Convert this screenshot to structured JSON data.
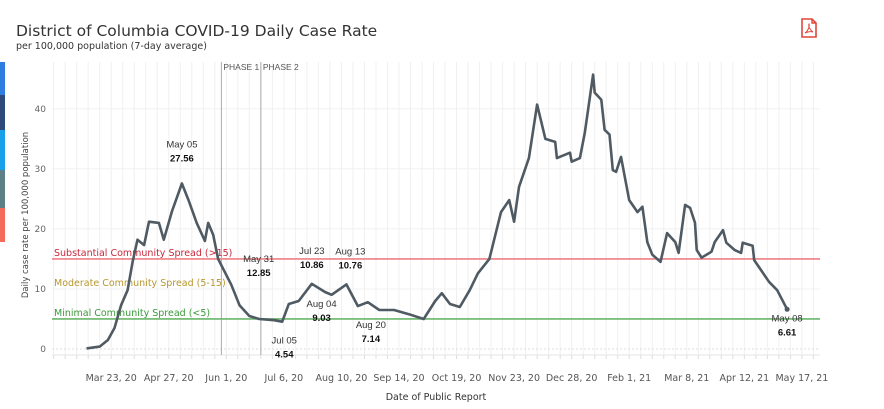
{
  "header": {
    "title": "District of Columbia COVID-19 Daily Case Rate",
    "subtitle": "per 100,000 population (7-day average)",
    "pdf_icon": "pdf-download-icon"
  },
  "side_strips": [
    "#2f7de1",
    "#2e4a7a",
    "#1aa0e8",
    "#5f7f86",
    "#f26b5b"
  ],
  "chart_data": {
    "type": "line",
    "title": "District of Columbia COVID-19 Daily Case Rate",
    "subtitle": "per 100,000 population (7-day average)",
    "xlabel": "Date of Public Report",
    "ylabel": "Daily case rate per 100,000 population",
    "xlim": [
      "2020-02-16",
      "2021-05-28"
    ],
    "ylim": [
      -1,
      47.8
    ],
    "grid": true,
    "line_color": "#4f5a63",
    "x_ticks": [
      {
        "date": "2020-03-23",
        "label": "Mar 23, 20"
      },
      {
        "date": "2020-04-27",
        "label": "Apr 27, 20"
      },
      {
        "date": "2020-06-01",
        "label": "Jun 1, 20"
      },
      {
        "date": "2020-07-06",
        "label": "Jul 6, 20"
      },
      {
        "date": "2020-08-10",
        "label": "Aug 10, 20"
      },
      {
        "date": "2020-09-14",
        "label": "Sep 14, 20"
      },
      {
        "date": "2020-10-19",
        "label": "Oct 19, 20"
      },
      {
        "date": "2020-11-23",
        "label": "Nov 23, 20"
      },
      {
        "date": "2020-12-28",
        "label": "Dec 28, 20"
      },
      {
        "date": "2021-02-01",
        "label": "Feb 1, 21"
      },
      {
        "date": "2021-03-08",
        "label": "Mar 8, 21"
      },
      {
        "date": "2021-04-12",
        "label": "Apr 12, 21"
      },
      {
        "date": "2021-05-17",
        "label": "May 17, 21"
      }
    ],
    "y_ticks": [
      {
        "value": 0,
        "label": "0"
      },
      {
        "value": 10,
        "label": "10"
      },
      {
        "value": 20,
        "label": "20"
      },
      {
        "value": 30,
        "label": "30"
      },
      {
        "value": 40,
        "label": "40"
      }
    ],
    "phases": [
      {
        "date": "2020-05-29",
        "label": "PHASE 1"
      },
      {
        "date": "2020-06-22",
        "label": "PHASE 2"
      }
    ],
    "thresholds": [
      {
        "value": 15,
        "label": "Substantial Community Spread (>15)",
        "line_color": "#ee7f84",
        "text_color": "#c8283c"
      },
      {
        "value": 10,
        "label": "Moderate Community Spread (5-15)",
        "line_color": null,
        "text_color": "#b8962e"
      },
      {
        "value": 5,
        "label": "Minimal Community Spread (<5)",
        "line_color": "#6ab56a",
        "text_color": "#3a9a3a"
      }
    ],
    "series": [
      {
        "points": [
          [
            "2020-03-08",
            0.1
          ],
          [
            "2020-03-16",
            0.4
          ],
          [
            "2020-03-21",
            1.5
          ],
          [
            "2020-03-25",
            3.5
          ],
          [
            "2020-03-29",
            7.3
          ],
          [
            "2020-04-02",
            9.8
          ],
          [
            "2020-04-05",
            14.5
          ],
          [
            "2020-04-08",
            18.2
          ],
          [
            "2020-04-12",
            17.3
          ],
          [
            "2020-04-15",
            21.2
          ],
          [
            "2020-04-21",
            21
          ],
          [
            "2020-04-24",
            18.2
          ],
          [
            "2020-04-29",
            23
          ],
          [
            "2020-05-05",
            27.56
          ],
          [
            "2020-05-09",
            24.8
          ],
          [
            "2020-05-14",
            21
          ],
          [
            "2020-05-19",
            18
          ],
          [
            "2020-05-21",
            21
          ],
          [
            "2020-05-24",
            19
          ],
          [
            "2020-05-27",
            15
          ],
          [
            "2020-05-31",
            12.85
          ],
          [
            "2020-06-04",
            10.7
          ],
          [
            "2020-06-09",
            7.3
          ],
          [
            "2020-06-15",
            5.5
          ],
          [
            "2020-06-21",
            5
          ],
          [
            "2020-06-30",
            4.8
          ],
          [
            "2020-07-05",
            4.54
          ],
          [
            "2020-07-09",
            7.5
          ],
          [
            "2020-07-15",
            8
          ],
          [
            "2020-07-23",
            10.86
          ],
          [
            "2020-07-31",
            9.5
          ],
          [
            "2020-08-04",
            9.03
          ],
          [
            "2020-08-13",
            10.76
          ],
          [
            "2020-08-20",
            7.14
          ],
          [
            "2020-08-26",
            7.8
          ],
          [
            "2020-09-02",
            6.5
          ],
          [
            "2020-09-11",
            6.5
          ],
          [
            "2020-09-20",
            5.8
          ],
          [
            "2020-09-29",
            5
          ],
          [
            "2020-10-06",
            8
          ],
          [
            "2020-10-10",
            9.3
          ],
          [
            "2020-10-15",
            7.5
          ],
          [
            "2020-10-21",
            7
          ],
          [
            "2020-10-27",
            9.8
          ],
          [
            "2020-11-01",
            12.6
          ],
          [
            "2020-11-08",
            15
          ],
          [
            "2020-11-15",
            22.8
          ],
          [
            "2020-11-20",
            24.8
          ],
          [
            "2020-11-23",
            21.2
          ],
          [
            "2020-11-26",
            27
          ],
          [
            "2020-12-02",
            31.8
          ],
          [
            "2020-12-07",
            40.7
          ],
          [
            "2020-12-12",
            35
          ],
          [
            "2020-12-18",
            34.5
          ],
          [
            "2020-12-19",
            31.8
          ],
          [
            "2020-12-27",
            32.7
          ],
          [
            "2020-12-28",
            31.2
          ],
          [
            "2021-01-02",
            31.8
          ],
          [
            "2021-01-05",
            36
          ],
          [
            "2021-01-10",
            45.7
          ],
          [
            "2021-01-11",
            42.7
          ],
          [
            "2021-01-15",
            41.5
          ],
          [
            "2021-01-17",
            36.5
          ],
          [
            "2021-01-20",
            35.7
          ],
          [
            "2021-01-22",
            29.8
          ],
          [
            "2021-01-24",
            29.5
          ],
          [
            "2021-01-27",
            32
          ],
          [
            "2021-02-01",
            24.8
          ],
          [
            "2021-02-06",
            22.8
          ],
          [
            "2021-02-09",
            23.7
          ],
          [
            "2021-02-12",
            17.8
          ],
          [
            "2021-02-15",
            15.7
          ],
          [
            "2021-02-20",
            14.5
          ],
          [
            "2021-02-24",
            19.3
          ],
          [
            "2021-03-01",
            17.8
          ],
          [
            "2021-03-03",
            16
          ],
          [
            "2021-03-07",
            24
          ],
          [
            "2021-03-10",
            23.5
          ],
          [
            "2021-03-13",
            21
          ],
          [
            "2021-03-14",
            16.5
          ],
          [
            "2021-03-17",
            15.2
          ],
          [
            "2021-03-23",
            16.2
          ],
          [
            "2021-03-25",
            17.8
          ],
          [
            "2021-03-30",
            19.8
          ],
          [
            "2021-04-01",
            17.7
          ],
          [
            "2021-04-06",
            16.5
          ],
          [
            "2021-04-10",
            16
          ],
          [
            "2021-04-11",
            17.7
          ],
          [
            "2021-04-17",
            17.2
          ],
          [
            "2021-04-18",
            14.8
          ],
          [
            "2021-04-23",
            12.8
          ],
          [
            "2021-04-27",
            11.2
          ],
          [
            "2021-05-02",
            9.8
          ],
          [
            "2021-05-08",
            6.61
          ]
        ]
      }
    ],
    "annotations": [
      {
        "date": "2020-05-05",
        "value": 27.56,
        "label": "May 05",
        "value_label": "27.56"
      },
      {
        "date": "2020-05-31",
        "value": 12.85,
        "label": "May 31",
        "value_label": "12.85"
      },
      {
        "date": "2020-07-05",
        "value": 4.54,
        "label": "Jul 05",
        "value_label": "4.54"
      },
      {
        "date": "2020-07-23",
        "value": 10.86,
        "label": "Jul 23",
        "value_label": "10.86"
      },
      {
        "date": "2020-08-04",
        "value": 9.03,
        "label": "Aug 04",
        "value_label": "9.03"
      },
      {
        "date": "2020-08-13",
        "value": 10.76,
        "label": "Aug 13",
        "value_label": "10.76"
      },
      {
        "date": "2020-08-20",
        "value": 7.14,
        "label": "Aug 20",
        "value_label": "7.14"
      },
      {
        "date": "2021-05-08",
        "value": 6.61,
        "label": "May 08",
        "value_label": "6.61"
      }
    ]
  }
}
